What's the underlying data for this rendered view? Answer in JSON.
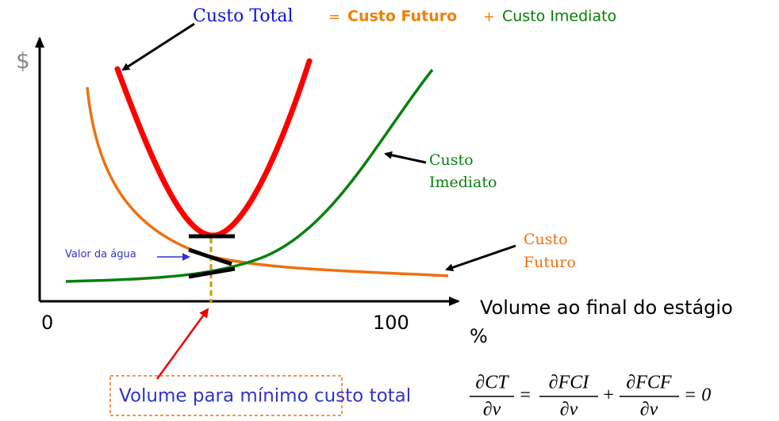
{
  "title": {
    "total": "Custo Total",
    "equals": "=",
    "future": "Custo Futuro",
    "plus": "+",
    "immediate": "Custo Imediato"
  },
  "y_axis_label": "$",
  "x_axis": {
    "origin": "0",
    "end": "100",
    "label": "Volume ao final do estágio",
    "unit": "%"
  },
  "curve_labels": {
    "immediate": [
      "Custo",
      "Imediato"
    ],
    "future": [
      "Custo",
      "Futuro"
    ]
  },
  "water_value": "Valor da água",
  "minimum_label": "Volume para mínimo custo total",
  "equation": {
    "lhs_num": "∂CT",
    "lhs_den": "∂v",
    "eq1": "=",
    "t1_num": "∂FCI",
    "t1_den": "∂v",
    "plus": "+",
    "t2_num": "∂FCF",
    "t2_den": "∂v",
    "rhs": "= 0"
  }
}
